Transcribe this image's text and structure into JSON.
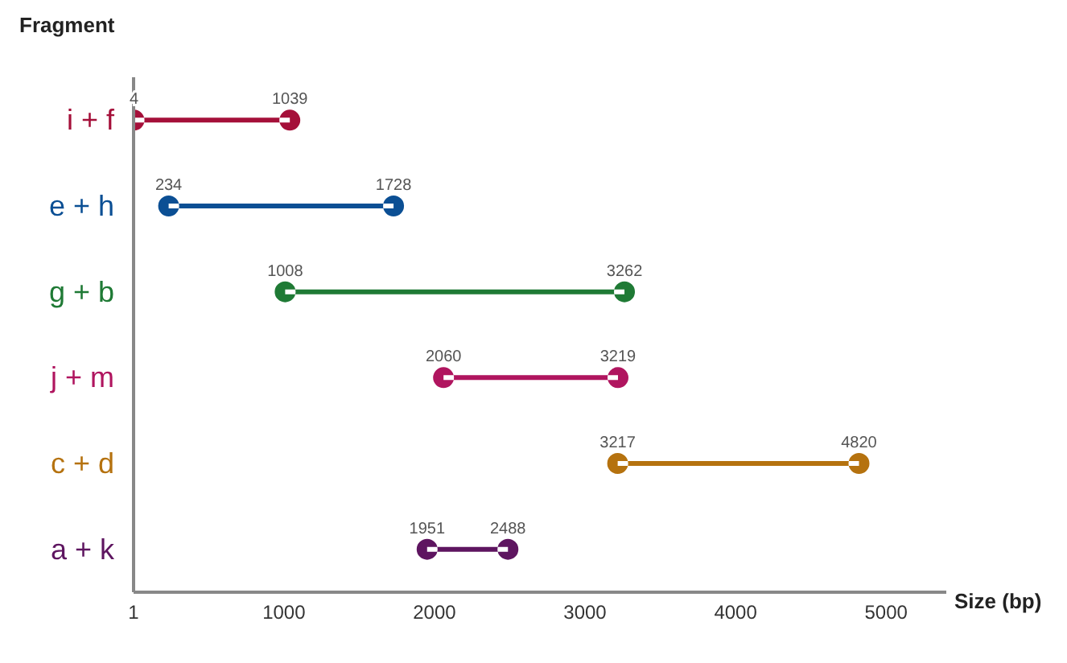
{
  "chart_data": {
    "type": "bar",
    "orientation": "horizontal",
    "xlabel": "Size (bp)",
    "ylabel": "Fragment",
    "categories": [
      "i + f",
      "e + h",
      "g + b",
      "j + m",
      "c + d",
      "a + k"
    ],
    "base": [
      4,
      234,
      1008,
      2060,
      3217,
      1951
    ],
    "values": [
      1035,
      1494,
      2254,
      1159,
      1603,
      537
    ],
    "colors": [
      "#a5103a",
      "#0b4f94",
      "#1f7a35",
      "#b0155f",
      "#b5720f",
      "#5e1560"
    ],
    "xlim": [
      1,
      5400
    ],
    "xticks": [
      1,
      1000,
      2000,
      3000,
      4000,
      5000
    ],
    "annotations": [
      {
        "text": "4",
        "x": 4,
        "y": "i + f"
      },
      {
        "text": "1039",
        "x": 1039,
        "y": "i + f"
      },
      {
        "text": "234",
        "x": 234,
        "y": "e + h"
      },
      {
        "text": "1728",
        "x": 1728,
        "y": "e + h"
      },
      {
        "text": "1008",
        "x": 1008,
        "y": "g + b"
      },
      {
        "text": "3262",
        "x": 3262,
        "y": "g + b"
      },
      {
        "text": "2060",
        "x": 2060,
        "y": "j + m"
      },
      {
        "text": "3219",
        "x": 3219,
        "y": "j + m"
      },
      {
        "text": "3217",
        "x": 3217,
        "y": "c + d"
      },
      {
        "text": "4820",
        "x": 4820,
        "y": "c + d"
      },
      {
        "text": "1951",
        "x": 1951,
        "y": "a + k"
      },
      {
        "text": "2488",
        "x": 2488,
        "y": "a + k"
      }
    ]
  }
}
